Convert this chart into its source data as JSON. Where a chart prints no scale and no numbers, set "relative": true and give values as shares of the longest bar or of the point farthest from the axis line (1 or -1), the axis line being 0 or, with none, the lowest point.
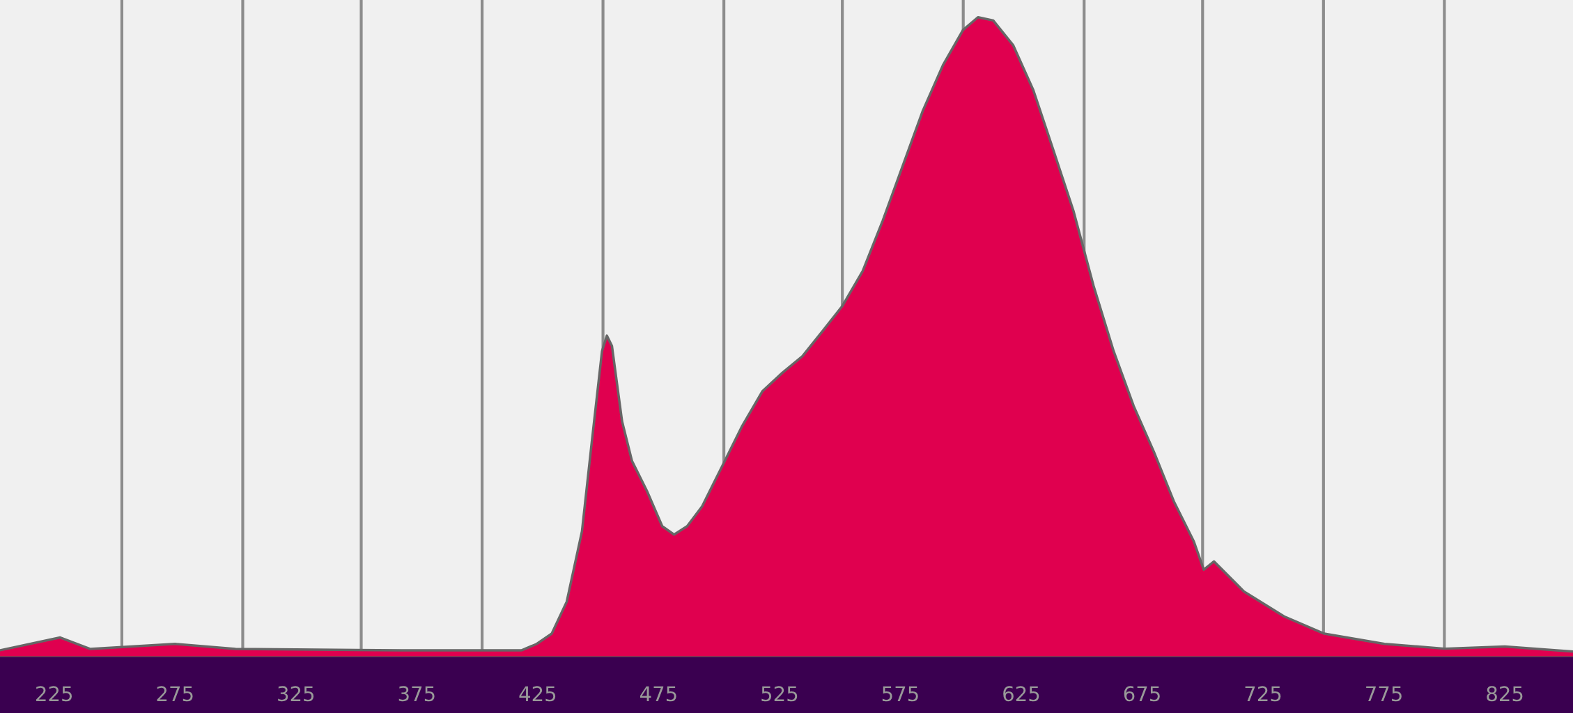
{
  "chart_data": {
    "type": "area",
    "relative": true,
    "x": [
      202.6,
      227.5,
      240,
      275,
      300,
      368.6,
      418.4,
      424.6,
      430.8,
      437,
      443.3,
      447.4,
      451.6,
      453.6,
      455.7,
      459.9,
      464,
      470.2,
      476.5,
      481.4,
      486.8,
      493,
      501.3,
      509.6,
      517.9,
      526.2,
      534.5,
      542.8,
      551.1,
      559.4,
      567.7,
      576,
      584.3,
      592.6,
      600.9,
      607.1,
      613.4,
      621.7,
      630,
      638.3,
      646.6,
      654.9,
      663.2,
      671.5,
      679.8,
      688.1,
      696.4,
      700.5,
      704.7,
      717.1,
      733.7,
      750.3,
      775.2,
      800.1,
      825,
      853.2
    ],
    "series": [
      {
        "color": "#e0004f",
        "values": [
          0.01,
          0.03,
          0.012,
          0.02,
          0.012,
          0.01,
          0.01,
          0.02,
          0.036,
          0.086,
          0.196,
          0.337,
          0.478,
          0.502,
          0.486,
          0.368,
          0.306,
          0.259,
          0.204,
          0.191,
          0.204,
          0.235,
          0.298,
          0.361,
          0.415,
          0.444,
          0.47,
          0.509,
          0.549,
          0.603,
          0.682,
          0.768,
          0.854,
          0.925,
          0.98,
          1.0,
          0.995,
          0.956,
          0.886,
          0.792,
          0.697,
          0.58,
          0.478,
          0.392,
          0.321,
          0.243,
          0.18,
          0.136,
          0.149,
          0.102,
          0.063,
          0.036,
          0.02,
          0.0125,
          0.016,
          0.008
        ]
      }
    ],
    "xlim": [
      202.6,
      853.2
    ],
    "xticks": [
      225,
      275,
      325,
      375,
      425,
      475,
      525,
      575,
      625,
      675,
      725,
      775,
      825
    ],
    "ref_lines": [
      {
        "axis": "x",
        "value": 253,
        "color": "#8c8c8c"
      },
      {
        "axis": "x",
        "value": 303,
        "color": "#8c8c8c"
      },
      {
        "axis": "x",
        "value": 352,
        "color": "#8c8c8c"
      },
      {
        "axis": "x",
        "value": 402,
        "color": "#8c8c8c"
      },
      {
        "axis": "x",
        "value": 452,
        "color": "#8c8c8c"
      },
      {
        "axis": "x",
        "value": 502,
        "color": "#8c8c8c"
      },
      {
        "axis": "x",
        "value": 551,
        "color": "#8c8c8c"
      },
      {
        "axis": "x",
        "value": 601,
        "color": "#8c8c8c"
      },
      {
        "axis": "x",
        "value": 651,
        "color": "#8c8c8c"
      },
      {
        "axis": "x",
        "value": 700,
        "color": "#8c8c8c"
      },
      {
        "axis": "x",
        "value": 750,
        "color": "#8c8c8c"
      },
      {
        "axis": "x",
        "value": 800,
        "color": "#8c8c8c"
      }
    ]
  }
}
